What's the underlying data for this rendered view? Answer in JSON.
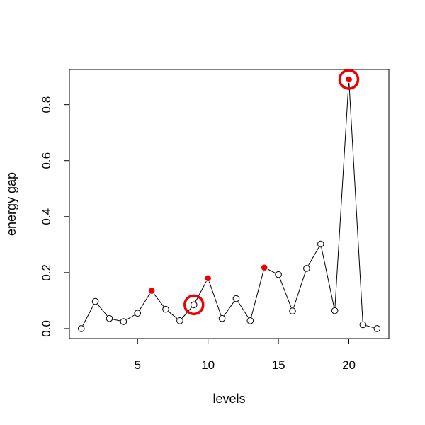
{
  "chart_data": {
    "type": "line",
    "xlabel": "levels",
    "ylabel": "energy gap",
    "xlim": [
      0.16,
      22.84
    ],
    "ylim": [
      -0.0356,
      0.9256
    ],
    "xticks": [
      5,
      10,
      15,
      20
    ],
    "yticks": [
      0.0,
      0.2,
      0.4,
      0.6,
      0.8
    ],
    "xtick_labels": [
      "5",
      "10",
      "15",
      "20"
    ],
    "ytick_labels": [
      "0.0",
      "0.2",
      "0.4",
      "0.6",
      "0.8"
    ],
    "grid": false,
    "series": [
      {
        "x": [
          1,
          2,
          3,
          4,
          5,
          6,
          7,
          8,
          9,
          10,
          11,
          12,
          13,
          14,
          15,
          16,
          17,
          18,
          19,
          20,
          21,
          22
        ],
        "y": [
          0.0,
          0.097,
          0.036,
          0.025,
          0.055,
          0.135,
          0.069,
          0.028,
          0.085,
          0.18,
          0.036,
          0.107,
          0.028,
          0.218,
          0.193,
          0.063,
          0.215,
          0.302,
          0.064,
          0.89,
          0.014,
          0.0
        ],
        "line_color": "#000000",
        "marker": "open-circle"
      }
    ],
    "highlighted_points": {
      "x": [
        6,
        10,
        14,
        20
      ],
      "color": "#ee0000"
    },
    "circled_points": {
      "x": [
        9,
        20
      ],
      "color": "#ee0000"
    }
  }
}
